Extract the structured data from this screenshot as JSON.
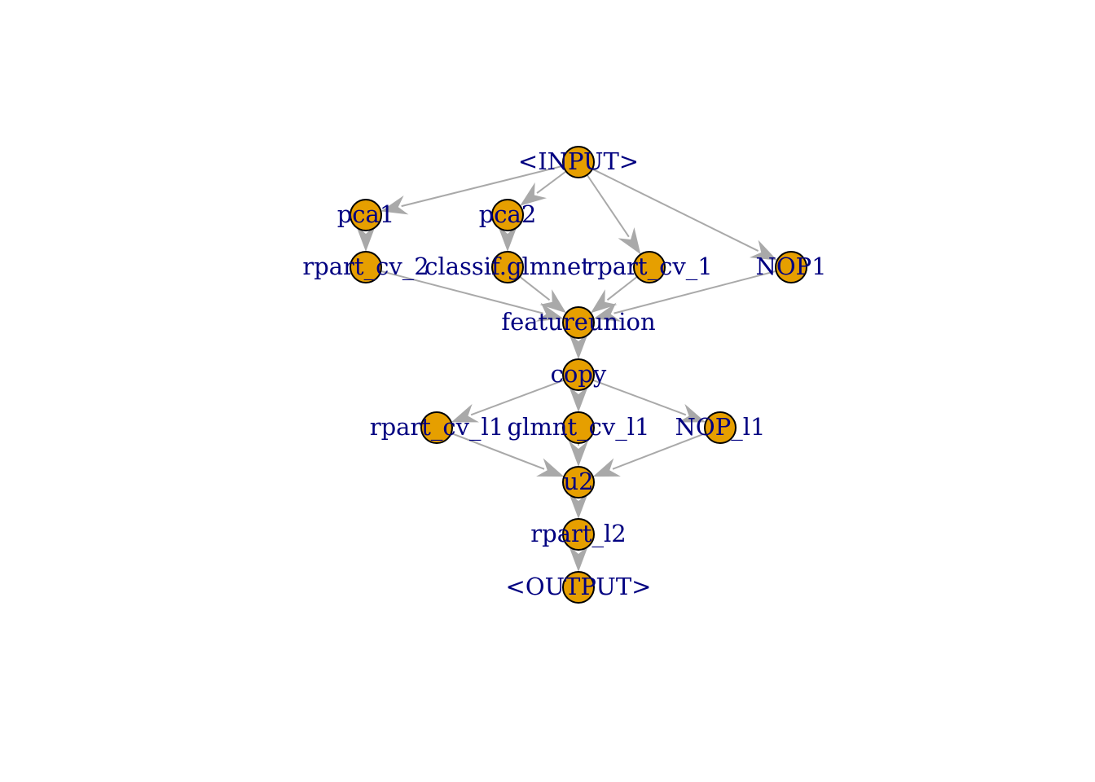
{
  "graph": {
    "colors": {
      "edge": "#a9a9a9",
      "node_fill": "#e69f00",
      "node_stroke": "#000000",
      "label": "#000080"
    },
    "nodes": [
      {
        "id": "input",
        "label": "<INPUT>"
      },
      {
        "id": "pca1",
        "label": "pca1"
      },
      {
        "id": "pca2",
        "label": "pca2"
      },
      {
        "id": "rpart_cv_2",
        "label": "rpart_cv_2"
      },
      {
        "id": "classif_glmnet",
        "label": "classif.glmnet"
      },
      {
        "id": "rpart_cv_1",
        "label": "rpart_cv_1"
      },
      {
        "id": "nop1",
        "label": "NOP1"
      },
      {
        "id": "featureunion",
        "label": "featureunion"
      },
      {
        "id": "copy",
        "label": "copy"
      },
      {
        "id": "rpart_cv_l1",
        "label": "rpart_cv_l1"
      },
      {
        "id": "glmnt_cv_l1",
        "label": "glmnt_cv_l1"
      },
      {
        "id": "nop_l1",
        "label": "NOP_l1"
      },
      {
        "id": "u2",
        "label": "u2"
      },
      {
        "id": "rpart_l2",
        "label": "rpart_l2"
      },
      {
        "id": "output",
        "label": "<OUTPUT>"
      }
    ],
    "edges": [
      {
        "from": "input",
        "to": "pca1"
      },
      {
        "from": "input",
        "to": "pca2"
      },
      {
        "from": "input",
        "to": "rpart_cv_1"
      },
      {
        "from": "input",
        "to": "nop1"
      },
      {
        "from": "pca1",
        "to": "rpart_cv_2"
      },
      {
        "from": "pca2",
        "to": "classif_glmnet"
      },
      {
        "from": "rpart_cv_2",
        "to": "featureunion"
      },
      {
        "from": "classif_glmnet",
        "to": "featureunion"
      },
      {
        "from": "rpart_cv_1",
        "to": "featureunion"
      },
      {
        "from": "nop1",
        "to": "featureunion"
      },
      {
        "from": "featureunion",
        "to": "copy"
      },
      {
        "from": "copy",
        "to": "rpart_cv_l1"
      },
      {
        "from": "copy",
        "to": "glmnt_cv_l1"
      },
      {
        "from": "copy",
        "to": "nop_l1"
      },
      {
        "from": "rpart_cv_l1",
        "to": "u2"
      },
      {
        "from": "glmnt_cv_l1",
        "to": "u2"
      },
      {
        "from": "nop_l1",
        "to": "u2"
      },
      {
        "from": "u2",
        "to": "rpart_l2"
      },
      {
        "from": "rpart_l2",
        "to": "output"
      }
    ]
  }
}
